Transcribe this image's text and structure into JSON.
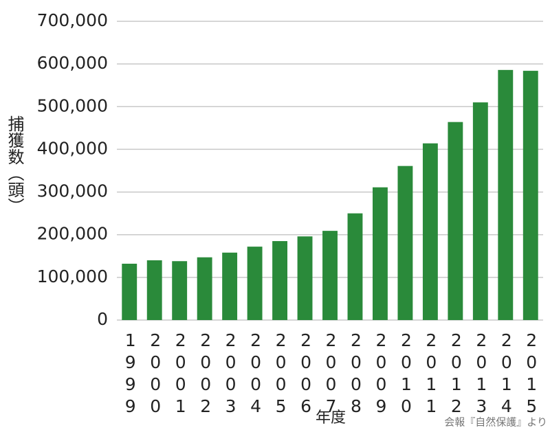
{
  "chart_data": {
    "type": "bar",
    "y_label": "捕獲数（頭）",
    "x_label": "年度",
    "source": "会報『自然保護』より",
    "categories": [
      "1999",
      "2000",
      "2001",
      "2002",
      "2003",
      "2004",
      "2005",
      "2006",
      "2007",
      "2008",
      "2009",
      "2010",
      "2011",
      "2012",
      "2013",
      "2014",
      "2015"
    ],
    "values": [
      132000,
      140000,
      138000,
      147000,
      158000,
      172000,
      185000,
      196000,
      209000,
      250000,
      311000,
      361000,
      414000,
      464000,
      510000,
      586000,
      584000
    ],
    "color": "#2a8a3a",
    "ylim": [
      0,
      700000
    ],
    "yticks": [
      0,
      {
        "value": 100000,
        "label": "100,000"
      },
      {
        "value": 200000,
        "label": "200,000"
      },
      {
        "value": 300000,
        "label": "300,000"
      },
      {
        "value": 400000,
        "label": "400,000"
      },
      {
        "value": 500000,
        "label": "500,000"
      },
      {
        "value": 600000,
        "label": "600,000"
      },
      {
        "value": 700000,
        "label": "700,000"
      }
    ],
    "grid": true
  }
}
